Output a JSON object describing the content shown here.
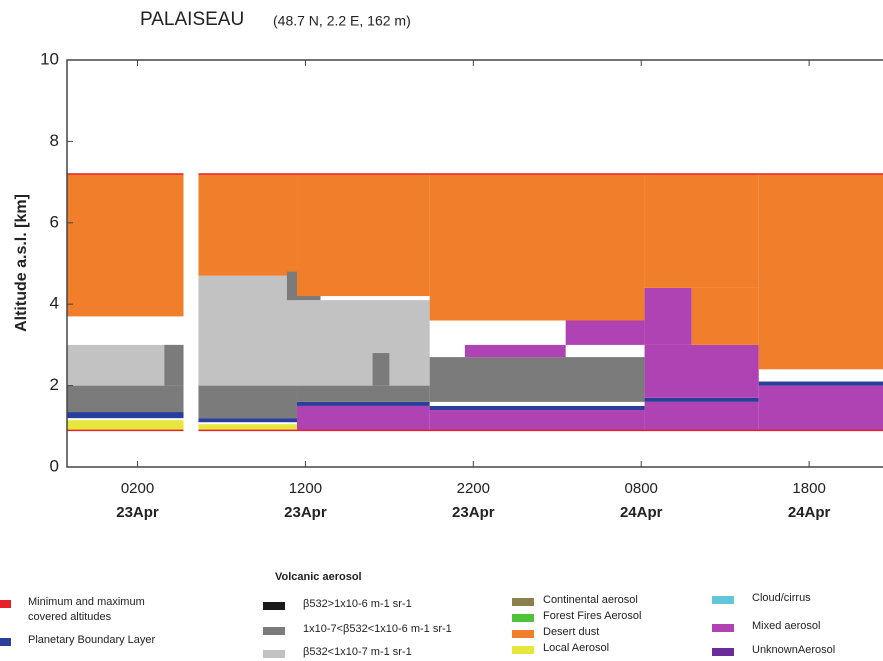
{
  "chart_data": {
    "type": "aerosol-profile",
    "title": "PALAISEAU",
    "subtitle": "(48.7 N, 2.2 E, 162 m)",
    "ylabel": "Altitude a.s.l. [km]",
    "xlim": [
      -2.2,
      46.4
    ],
    "ylim": [
      0,
      10
    ],
    "yticks": [
      0,
      2,
      4,
      6,
      8,
      10
    ],
    "xticks": [
      {
        "value": 2,
        "label": "0200"
      },
      {
        "value": 12,
        "label": "1200"
      },
      {
        "value": 22,
        "label": "2200"
      },
      {
        "value": 32,
        "label": "0800"
      },
      {
        "value": 42,
        "label": "1800"
      }
    ],
    "xtick_dates": [
      "23Apr",
      "23Apr",
      "23Apr",
      "24Apr",
      "24Apr"
    ],
    "legend_header": "Volcanic aerosol",
    "legend": [
      {
        "name_lines": [
          "Minimum and maximum",
          "covered altitudes"
        ],
        "color": "#e8202a"
      },
      {
        "name_lines": [
          "Planetary Boundary Layer"
        ],
        "color": "#2a3f9a"
      },
      {
        "name_lines": [
          "β532>1x10-6 m-1 sr-1"
        ],
        "color": "#1a1a1a"
      },
      {
        "name_lines": [
          "1x10-7<β532<1x10-6 m-1 sr-1"
        ],
        "color": "#7b7b7b"
      },
      {
        "name_lines": [
          "β532<1x10-7 m-1 sr-1"
        ],
        "color": "#c2c2c2"
      },
      {
        "name_lines": [
          "Continental aerosol"
        ],
        "color": "#8c7f4e"
      },
      {
        "name_lines": [
          "Forest Fires Aerosol"
        ],
        "color": "#4fc23a"
      },
      {
        "name_lines": [
          "Desert dust"
        ],
        "color": "#f07e2b"
      },
      {
        "name_lines": [
          "Local Aerosol"
        ],
        "color": "#e6e63c"
      },
      {
        "name_lines": [
          "Cloud/cirrus"
        ],
        "color": "#62c6d8"
      },
      {
        "name_lines": [
          "Mixed aerosol"
        ],
        "color": "#b043b3"
      },
      {
        "name_lines": [
          "UnknownAerosol"
        ],
        "color": "#6a2c99"
      }
    ],
    "coverage": [
      {
        "x": [
          -2.2,
          4.74
        ],
        "y": [
          0.9,
          7.2
        ]
      },
      {
        "x": [
          5.63,
          46.4
        ],
        "y": [
          0.9,
          7.2
        ]
      }
    ],
    "layers": [
      {
        "class": 8,
        "x": [
          -2.2,
          4.74
        ],
        "y": [
          0.9,
          1.15
        ]
      },
      {
        "class": 1,
        "x": [
          -2.2,
          4.74
        ],
        "y": [
          1.2,
          1.35
        ]
      },
      {
        "class": 3,
        "x": [
          -2.2,
          4.74
        ],
        "y": [
          1.35,
          2.0
        ]
      },
      {
        "class": 4,
        "x": [
          -2.2,
          4.74
        ],
        "y": [
          2.0,
          3.0
        ]
      },
      {
        "class": 3,
        "x": [
          3.6,
          4.74
        ],
        "y": [
          2.0,
          3.0
        ]
      },
      {
        "class": 7,
        "x": [
          -2.2,
          4.74
        ],
        "y": [
          3.7,
          7.2
        ]
      },
      {
        "class": 8,
        "x": [
          5.63,
          11.5
        ],
        "y": [
          0.9,
          1.05
        ]
      },
      {
        "class": 1,
        "x": [
          5.63,
          11.5
        ],
        "y": [
          1.1,
          1.2
        ]
      },
      {
        "class": 3,
        "x": [
          5.63,
          11.5
        ],
        "y": [
          1.2,
          2.0
        ]
      },
      {
        "class": 4,
        "x": [
          5.63,
          11.5
        ],
        "y": [
          2.0,
          4.7
        ]
      },
      {
        "class": 7,
        "x": [
          5.63,
          11.5
        ],
        "y": [
          4.7,
          7.2
        ]
      },
      {
        "class": 10,
        "x": [
          11.5,
          19.4
        ],
        "y": [
          0.9,
          1.5
        ]
      },
      {
        "class": 1,
        "x": [
          11.5,
          19.4
        ],
        "y": [
          1.5,
          1.6
        ]
      },
      {
        "class": 3,
        "x": [
          11.5,
          19.4
        ],
        "y": [
          1.6,
          2.0
        ]
      },
      {
        "class": 4,
        "x": [
          11.5,
          19.4
        ],
        "y": [
          2.0,
          4.1
        ]
      },
      {
        "class": 3,
        "x": [
          10.9,
          12.9
        ],
        "y": [
          4.1,
          4.8
        ]
      },
      {
        "class": 3,
        "x": [
          16.0,
          17.0
        ],
        "y": [
          2.0,
          2.8
        ]
      },
      {
        "class": 7,
        "x": [
          11.5,
          19.4
        ],
        "y": [
          4.2,
          7.2
        ]
      },
      {
        "class": 10,
        "x": [
          19.4,
          32.2
        ],
        "y": [
          0.9,
          1.4
        ]
      },
      {
        "class": 1,
        "x": [
          19.4,
          32.2
        ],
        "y": [
          1.4,
          1.5
        ]
      },
      {
        "class": 3,
        "x": [
          19.4,
          32.2
        ],
        "y": [
          1.6,
          2.7
        ]
      },
      {
        "class": 10,
        "x": [
          21.5,
          27.5
        ],
        "y": [
          2.7,
          3.0
        ]
      },
      {
        "class": 10,
        "x": [
          27.5,
          32.2
        ],
        "y": [
          3.0,
          4.0
        ]
      },
      {
        "class": 7,
        "x": [
          19.4,
          32.2
        ],
        "y": [
          3.6,
          7.2
        ]
      },
      {
        "class": 10,
        "x": [
          32.2,
          39.0
        ],
        "y": [
          0.9,
          1.6
        ]
      },
      {
        "class": 1,
        "x": [
          32.2,
          39.0
        ],
        "y": [
          1.6,
          1.7
        ]
      },
      {
        "class": 10,
        "x": [
          32.2,
          39.0
        ],
        "y": [
          1.7,
          3.0
        ]
      },
      {
        "class": 10,
        "x": [
          32.2,
          35.0
        ],
        "y": [
          3.0,
          4.4
        ]
      },
      {
        "class": 7,
        "x": [
          32.2,
          39.0
        ],
        "y": [
          4.4,
          7.2
        ]
      },
      {
        "class": 7,
        "x": [
          35.0,
          39.0
        ],
        "y": [
          3.0,
          4.4
        ]
      },
      {
        "class": 10,
        "x": [
          39.0,
          46.4
        ],
        "y": [
          0.9,
          2.0
        ]
      },
      {
        "class": 1,
        "x": [
          39.0,
          46.4
        ],
        "y": [
          2.0,
          2.1
        ]
      },
      {
        "class": 7,
        "x": [
          39.0,
          46.4
        ],
        "y": [
          2.4,
          7.2
        ]
      }
    ]
  }
}
